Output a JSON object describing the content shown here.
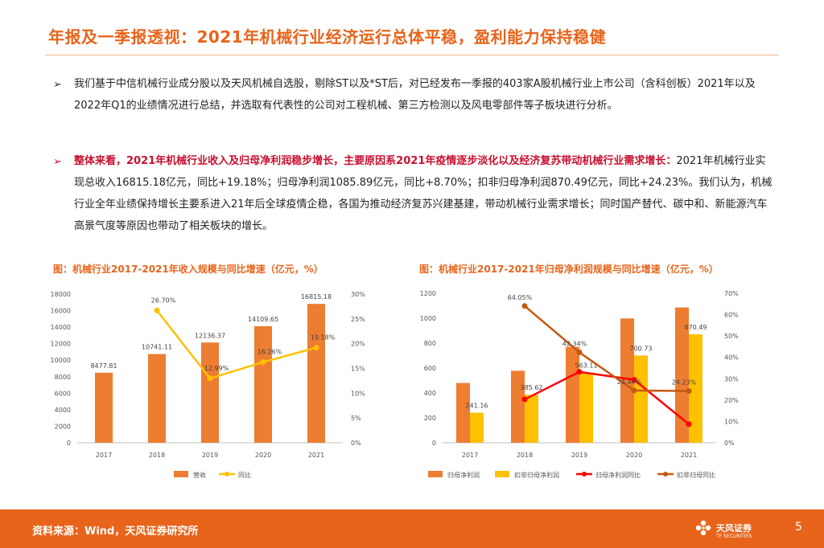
{
  "header": {
    "title": "年报及一季报透视：2021年机械行业经济运行总体平稳，盈利能力保持稳健"
  },
  "body": {
    "bullet_symbol": "➢",
    "p1": "我们基于中信机械行业成分股以及天风机械自选股，剔除ST以及*ST后，对已经发布一季报的403家A股机械行业上市公司（含科创板）2021年以及2022年Q1的业绩情况进行总结，并选取有代表性的公司对工程机械、第三方检测以及风电零部件等子板块进行分析。",
    "p2_highlight": "整体来看，2021年机械行业收入及归母净利润稳步增长，主要原因系2021年疫情逐步淡化以及经济复苏带动机械行业需求增长：",
    "p2_text": "2021年机械行业实现总收入16815.18亿元，同比+19.18%；归母净利润1085.89亿元，同比+8.70%；扣非归母净利润870.49亿元，同比+24.23%。我们认为，机械行业全年业绩保持增长主要系进入21年后全球疫情企稳，各国为推动经济复苏兴建基建，带动机械行业需求增长；同时国产替代、碳中和、新能源汽车高景气度等原因也带动了相关板块的增长。"
  },
  "figures": {
    "left_title": "图：机械行业2017-2021年收入规模与同比增速（亿元，%）",
    "right_title": "图：机械行业2017-2021年归母净利润规模与同比增速（亿元，%）"
  },
  "footer": {
    "source": "资料来源：Wind，天风证券研究所",
    "logo_text": "天风证券",
    "logo_sub": "TF SECURITIES",
    "page_number": "5"
  },
  "colors": {
    "orange": "#ed7d31",
    "yellow": "#ffc000",
    "red": "#ff0000",
    "brown": "#c55a11"
  },
  "chart_data": [
    {
      "type": "bar",
      "categories": [
        "2017",
        "2018",
        "2019",
        "2020",
        "2021"
      ],
      "series": [
        {
          "name": "营收",
          "kind": "bar",
          "axis": "left",
          "values": [
            8477.81,
            10741.11,
            12136.37,
            14109.65,
            16815.18
          ],
          "labels": [
            "8477.81",
            "10741.11",
            "12136.37",
            "14109.65",
            "16815.18"
          ]
        },
        {
          "name": "同比",
          "kind": "line",
          "axis": "right",
          "values": [
            null,
            26.7,
            12.99,
            16.26,
            19.18
          ],
          "labels": [
            "",
            "26.70%",
            "12.99%",
            "16.26%",
            "19.18%"
          ]
        }
      ],
      "left_axis": {
        "min": 0,
        "max": 18000,
        "ticks": [
          "0",
          "2000",
          "4000",
          "6000",
          "8000",
          "10000",
          "12000",
          "14000",
          "16000",
          "18000"
        ]
      },
      "right_axis": {
        "min": 0,
        "max": 30,
        "ticks": [
          "0%",
          "5%",
          "10%",
          "15%",
          "20%",
          "25%",
          "30%"
        ]
      },
      "legend": [
        "营收",
        "同比"
      ],
      "legend_position": "bottom"
    },
    {
      "type": "bar",
      "categories": [
        "2017",
        "2018",
        "2019",
        "2020",
        "2021"
      ],
      "series": [
        {
          "name": "归母净利润",
          "kind": "bar",
          "axis": "left",
          "values": [
            480,
            578,
            770,
            998,
            1085.89
          ],
          "labels": [
            "",
            "",
            "",
            "",
            ""
          ]
        },
        {
          "name": "扣非归母净利润",
          "kind": "bar",
          "axis": "left",
          "values": [
            241.16,
            385.62,
            563.11,
            700.73,
            870.49
          ],
          "labels": [
            "241.16",
            "385.62",
            "563.11",
            "700.73",
            "870.49"
          ]
        },
        {
          "name": "归母净利润同比",
          "kind": "line",
          "axis": "right",
          "values": [
            null,
            20.3,
            33.2,
            29.5,
            8.7
          ],
          "labels": [
            "",
            "",
            "",
            "",
            ""
          ]
        },
        {
          "name": "扣非归母同比",
          "kind": "line",
          "axis": "right",
          "values": [
            null,
            64.05,
            42.34,
            24.44,
            24.23
          ],
          "labels": [
            "",
            "64.05%",
            "42.34%",
            "24.44%",
            "24.23%"
          ]
        }
      ],
      "left_axis": {
        "min": 0,
        "max": 1200,
        "ticks": [
          "0",
          "200",
          "400",
          "600",
          "800",
          "1000",
          "1200"
        ]
      },
      "right_axis": {
        "min": 0,
        "max": 70,
        "ticks": [
          "0%",
          "10%",
          "20%",
          "30%",
          "40%",
          "50%",
          "60%",
          "70%"
        ]
      },
      "legend": [
        "归母净利润",
        "扣非归母净利润",
        "归母净利润同比",
        "扣非归母同比"
      ],
      "legend_position": "bottom"
    }
  ]
}
